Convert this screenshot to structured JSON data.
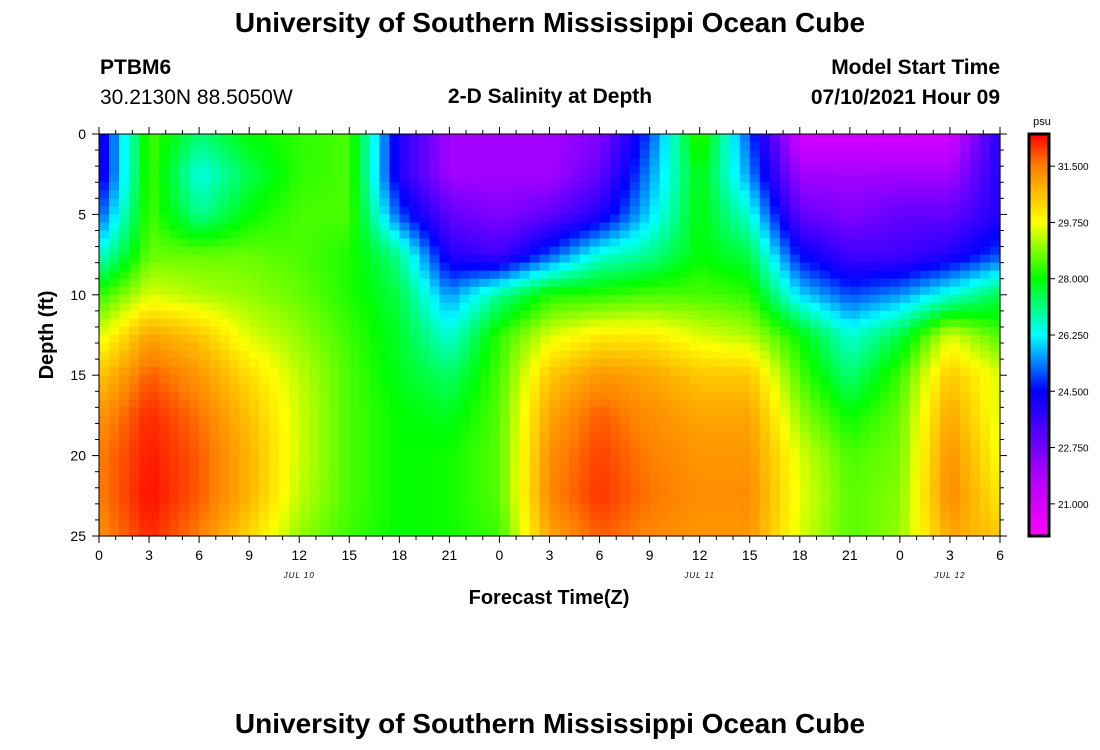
{
  "header": {
    "title": "University of Southern Mississippi Ocean Cube",
    "station_id": "PTBM6",
    "coords": "30.2130N  88.5050W",
    "subtitle": "2-D Salinity at Depth",
    "model_label": "Model Start Time",
    "model_time": "07/10/2021 Hour 09"
  },
  "footer": {
    "title": "University of Southern Mississippi Ocean Cube"
  },
  "chart_data": {
    "type": "heatmap",
    "title": "2-D Salinity at Depth",
    "xlabel": "Forecast Time(Z)",
    "ylabel": "Depth (ft)",
    "x_hours_range": [
      0,
      54
    ],
    "x_tick_labels": [
      "0",
      "3",
      "6",
      "9",
      "12",
      "15",
      "18",
      "21",
      "0",
      "3",
      "6",
      "9",
      "12",
      "15",
      "18",
      "21",
      "0",
      "3",
      "6"
    ],
    "date_labels": [
      {
        "text": "JUL 10",
        "hour": 12
      },
      {
        "text": "JUL 11",
        "hour": 36
      },
      {
        "text": "JUL 12",
        "hour": 51
      }
    ],
    "ylim": [
      0,
      25
    ],
    "y_ticks": [
      0,
      5,
      10,
      15,
      20,
      25
    ],
    "y_inverted": true,
    "colorbar": {
      "unit": "psu",
      "min": 20.0,
      "max": 32.5,
      "tick_values": [
        21.0,
        22.75,
        24.5,
        26.25,
        28.0,
        29.75,
        31.5
      ],
      "tick_labels": [
        "21.000",
        "22.750",
        "24.500",
        "26.250",
        "28.000",
        "29.750",
        "31.500"
      ]
    },
    "salinity_psu_grid": {
      "depths_ft": [
        0,
        2.5,
        5,
        7.5,
        10,
        12.5,
        15,
        17.5,
        20,
        22.5,
        25
      ],
      "hours": [
        0,
        3,
        6,
        9,
        12,
        15,
        18,
        21,
        24,
        27,
        30,
        33,
        36,
        39,
        42,
        45,
        48,
        51,
        54
      ],
      "values": [
        [
          24,
          28.5,
          27.2,
          28,
          28.3,
          28.5,
          24,
          22,
          22,
          22,
          22.5,
          25,
          28.5,
          25,
          21,
          21,
          21,
          21,
          24
        ],
        [
          24,
          28.5,
          26.4,
          27.5,
          28.3,
          28.5,
          24,
          22,
          22,
          22,
          23,
          25.5,
          28,
          25.5,
          22,
          22,
          22,
          22,
          24
        ],
        [
          25,
          28.5,
          27,
          28,
          28.5,
          28.5,
          25,
          23,
          22.5,
          23,
          24,
          26,
          28,
          26.5,
          23,
          22.5,
          23,
          23,
          24
        ],
        [
          26.5,
          28.7,
          28.7,
          28.7,
          28.5,
          28.2,
          27,
          24,
          23.5,
          25,
          26.5,
          27,
          28,
          27.5,
          24.5,
          23.5,
          23.5,
          24,
          25
        ],
        [
          28.3,
          29.5,
          29.2,
          29,
          28.7,
          28.2,
          27.5,
          25.5,
          27,
          28.2,
          28.3,
          28.5,
          28.5,
          28.3,
          26,
          25,
          25.5,
          26.5,
          27.5
        ],
        [
          29.5,
          31,
          30.5,
          29.5,
          29,
          28.4,
          27.7,
          26.5,
          28.3,
          29.5,
          30,
          30,
          29.5,
          29.2,
          28,
          26.5,
          27.5,
          29.5,
          28.5
        ],
        [
          30.5,
          31.8,
          31.2,
          30.2,
          29.3,
          28.5,
          27.8,
          27.3,
          28.5,
          30.5,
          31.2,
          31,
          30.5,
          30.5,
          28.5,
          27.2,
          28.4,
          30.5,
          29.5
        ],
        [
          31.2,
          32.2,
          31.6,
          30.6,
          29.4,
          28.5,
          28,
          27.8,
          28.6,
          31,
          31.8,
          31.3,
          31,
          31,
          29,
          28,
          28.7,
          31,
          29.5
        ],
        [
          31.5,
          32.3,
          31.8,
          30.8,
          29.4,
          28.5,
          28,
          28.1,
          28.6,
          31.3,
          32,
          31.5,
          31.2,
          31.2,
          29.5,
          28.5,
          28.8,
          31.3,
          29.7
        ],
        [
          31.5,
          32.4,
          31.8,
          30.8,
          29.3,
          28.5,
          28,
          28.1,
          28.6,
          31.4,
          32.1,
          31.6,
          31.3,
          31.3,
          29.6,
          28.6,
          28.9,
          31.4,
          30
        ],
        [
          31.3,
          32.2,
          31.5,
          30.3,
          29,
          28.4,
          28,
          28.1,
          28.4,
          31,
          31.8,
          31.4,
          31.2,
          31.2,
          29.5,
          28.6,
          29,
          31,
          30.5
        ]
      ]
    }
  }
}
